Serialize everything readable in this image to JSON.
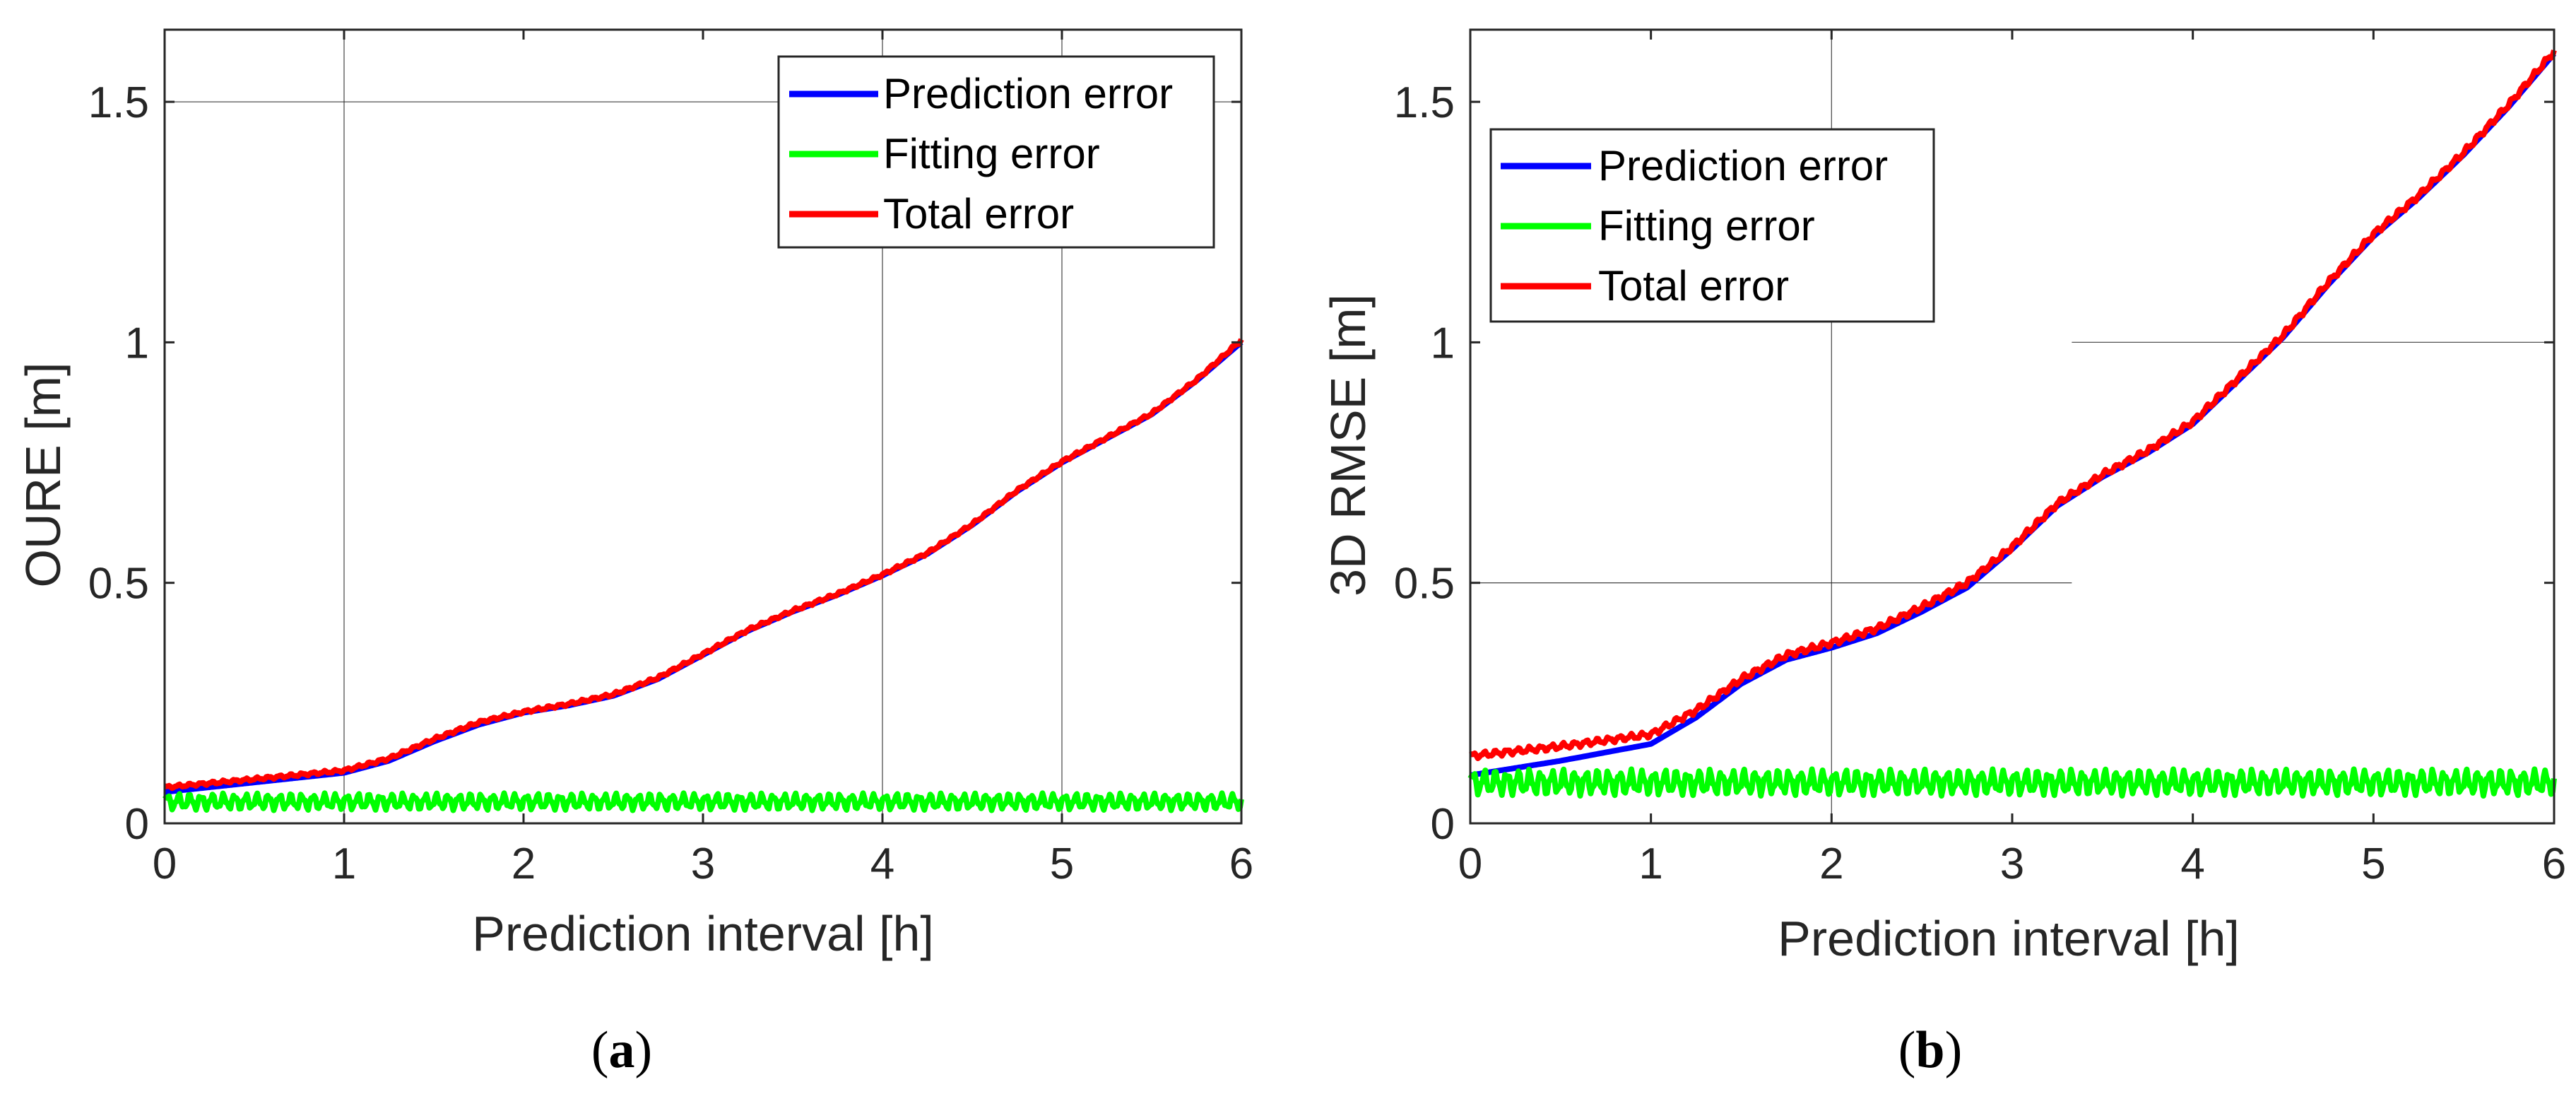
{
  "figure": {
    "panels": [
      {
        "id": "a",
        "label_open": "(",
        "label_letter": "a",
        "label_close": ")",
        "legend_position": "top-right"
      },
      {
        "id": "b",
        "label_open": "(",
        "label_letter": "b",
        "label_close": ")",
        "legend_position": "top-left"
      }
    ]
  },
  "colors": {
    "prediction": "#0000ff",
    "fitting": "#00ff00",
    "total": "#ff0000",
    "grid": "#262626",
    "axis": "#262626"
  },
  "chart_data": [
    {
      "type": "line",
      "title": "",
      "xlabel": "Prediction interval [h]",
      "ylabel": "OURE [m]",
      "xlim": [
        0,
        6
      ],
      "ylim": [
        0,
        1.65
      ],
      "xticks": [
        0,
        1,
        2,
        3,
        4,
        5,
        6
      ],
      "xtick_labels": [
        "0",
        "1",
        "2",
        "3",
        "4",
        "5",
        "6"
      ],
      "yticks": [
        0,
        0.5,
        1,
        1.5
      ],
      "ytick_labels": [
        "0",
        "0.5",
        "1",
        "1.5"
      ],
      "grid": "partial",
      "x": [
        0,
        0.5,
        1.0,
        1.25,
        1.5,
        1.75,
        2.0,
        2.25,
        2.5,
        2.75,
        3.0,
        3.25,
        3.5,
        3.75,
        4.0,
        4.25,
        4.5,
        4.75,
        5.0,
        5.25,
        5.5,
        5.75,
        6.0
      ],
      "series": [
        {
          "name": "Prediction error",
          "values": [
            0.065,
            0.085,
            0.105,
            0.13,
            0.17,
            0.205,
            0.23,
            0.245,
            0.265,
            0.3,
            0.35,
            0.4,
            0.44,
            0.475,
            0.515,
            0.56,
            0.62,
            0.69,
            0.75,
            0.8,
            0.85,
            0.92,
            1.0
          ]
        },
        {
          "name": "Fitting error",
          "values": [
            0.045,
            0.045,
            0.045,
            0.045,
            0.045,
            0.045,
            0.045,
            0.045,
            0.045,
            0.045,
            0.045,
            0.045,
            0.045,
            0.045,
            0.045,
            0.045,
            0.045,
            0.045,
            0.045,
            0.045,
            0.045,
            0.045,
            0.045
          ],
          "oscillation_amplitude": 0.018
        },
        {
          "name": "Total error",
          "values": [
            0.075,
            0.092,
            0.11,
            0.135,
            0.175,
            0.21,
            0.232,
            0.248,
            0.268,
            0.303,
            0.352,
            0.402,
            0.442,
            0.477,
            0.517,
            0.562,
            0.622,
            0.692,
            0.752,
            0.802,
            0.852,
            0.922,
            1.005
          ],
          "oscillation_amplitude": 0.006
        }
      ]
    },
    {
      "type": "line",
      "title": "",
      "xlabel": "Prediction interval [h]",
      "ylabel": "3D RMSE [m]",
      "xlim": [
        0,
        6
      ],
      "ylim": [
        0,
        1.65
      ],
      "xticks": [
        0,
        1,
        2,
        3,
        4,
        5,
        6
      ],
      "xtick_labels": [
        "0",
        "1",
        "2",
        "3",
        "4",
        "5",
        "6"
      ],
      "yticks": [
        0,
        0.5,
        1,
        1.5
      ],
      "ytick_labels": [
        "0",
        "0.5",
        "1",
        "1.5"
      ],
      "grid": "partial",
      "x": [
        0,
        0.5,
        1.0,
        1.25,
        1.5,
        1.75,
        2.0,
        2.25,
        2.5,
        2.75,
        3.0,
        3.25,
        3.5,
        3.75,
        4.0,
        4.25,
        4.5,
        4.75,
        5.0,
        5.25,
        5.5,
        5.75,
        6.0
      ],
      "series": [
        {
          "name": "Prediction error",
          "values": [
            0.1,
            0.13,
            0.165,
            0.22,
            0.29,
            0.34,
            0.365,
            0.395,
            0.44,
            0.49,
            0.57,
            0.66,
            0.72,
            0.77,
            0.83,
            0.92,
            1.01,
            1.12,
            1.22,
            1.3,
            1.39,
            1.49,
            1.6
          ]
        },
        {
          "name": "Fitting error",
          "values": [
            0.085,
            0.085,
            0.085,
            0.085,
            0.085,
            0.085,
            0.085,
            0.085,
            0.085,
            0.085,
            0.085,
            0.085,
            0.085,
            0.085,
            0.085,
            0.085,
            0.085,
            0.085,
            0.085,
            0.085,
            0.085,
            0.085,
            0.085
          ],
          "oscillation_amplitude": 0.028
        },
        {
          "name": "Total error",
          "values": [
            0.14,
            0.16,
            0.185,
            0.235,
            0.3,
            0.35,
            0.375,
            0.405,
            0.45,
            0.5,
            0.575,
            0.665,
            0.725,
            0.775,
            0.835,
            0.925,
            1.015,
            1.125,
            1.225,
            1.305,
            1.395,
            1.495,
            1.605
          ],
          "oscillation_amplitude": 0.012
        }
      ]
    }
  ]
}
